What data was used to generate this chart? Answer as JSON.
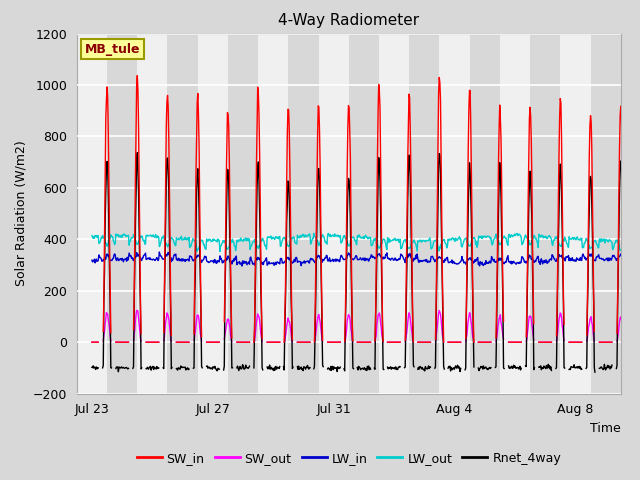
{
  "title": "4-Way Radiometer",
  "xlabel": "Time",
  "ylabel": "Solar Radiation (W/m2)",
  "label_text": "MB_tule",
  "ylim": [
    -200,
    1200
  ],
  "yticks": [
    -200,
    0,
    200,
    400,
    600,
    800,
    1000,
    1200
  ],
  "xtick_labels": [
    "Jul 23",
    "Jul 27",
    "Jul 31",
    "Aug 4",
    "Aug 8"
  ],
  "xtick_positions": [
    0,
    4,
    8,
    12,
    16
  ],
  "legend_entries": [
    "SW_in",
    "SW_out",
    "LW_in",
    "LW_out",
    "Rnet_4way"
  ],
  "colors": {
    "SW_in": "#ff0000",
    "SW_out": "#ff00ff",
    "LW_in": "#0000cc",
    "LW_out": "#00cccc",
    "Rnet_4way": "#000000"
  },
  "figure_bg": "#d8d8d8",
  "plot_bg": "#e8e8e8",
  "band_light": "#f0f0f0",
  "band_dark": "#d8d8d8",
  "n_days": 18,
  "pts_per_day": 48,
  "SW_in_peak": 1000,
  "SW_out_peak": 110,
  "LW_in_base": 315,
  "LW_out_base": 405,
  "Rnet_night": -100,
  "Rnet_day_peak": 760
}
